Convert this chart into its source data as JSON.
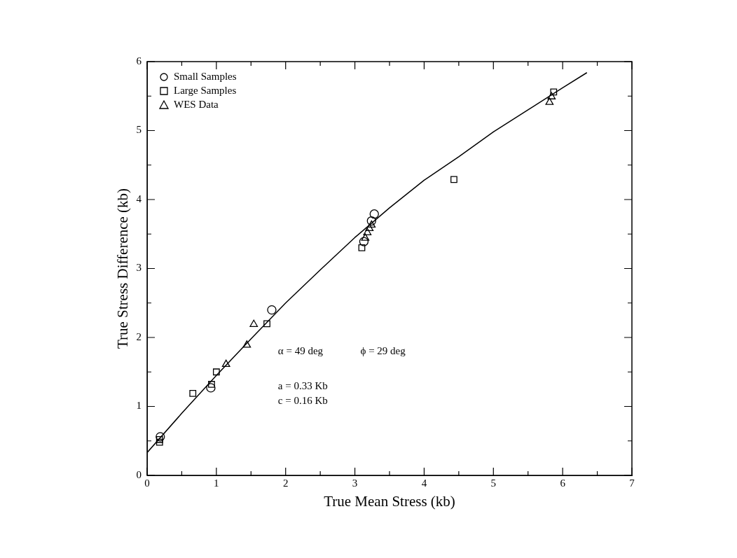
{
  "chart_data": {
    "type": "scatter",
    "xlabel": "True Mean Stress (kb)",
    "ylabel": "True Stress Difference (kb)",
    "xlim": [
      0,
      7
    ],
    "ylim": [
      0,
      6
    ],
    "xticks": [
      0,
      {
        "value": 0.5,
        "label": null
      },
      1,
      {
        "value": 1.5,
        "label": null
      },
      2,
      {
        "value": 2.5,
        "label": null
      },
      3,
      {
        "value": 3.5,
        "label": null
      },
      4,
      {
        "value": 4.5,
        "label": null
      },
      5,
      {
        "value": 5.5,
        "label": null
      },
      6,
      {
        "value": 6.5,
        "label": null
      },
      7
    ],
    "yticks": [
      0,
      {
        "value": 0.5,
        "label": null
      },
      1,
      {
        "value": 1.5,
        "label": null
      },
      2,
      {
        "value": 2.5,
        "label": null
      },
      3,
      {
        "value": 3.5,
        "label": null
      },
      4,
      {
        "value": 4.5,
        "label": null
      },
      5,
      {
        "value": 5.5,
        "label": null
      },
      6
    ],
    "grid": false,
    "legend": "top left",
    "annotations": [
      "α = 49 deg",
      "ϕ = 29 deg",
      "a = 0.33 Kb",
      "c = 0.16 Kb"
    ],
    "series": [
      {
        "name": "Small Samples",
        "color": "#000000",
        "marker": "circle",
        "x": [
          0.19,
          0.92,
          1.8,
          3.13,
          3.24,
          3.28
        ],
        "values": [
          0.56,
          1.27,
          2.4,
          3.39,
          3.69,
          3.79
        ]
      },
      {
        "name": "Large Samples",
        "color": "#000000",
        "marker": "square",
        "x": [
          0.18,
          0.18,
          0.66,
          0.93,
          1.0,
          1.73,
          3.1,
          4.43,
          5.87
        ],
        "values": [
          0.52,
          0.48,
          1.19,
          1.32,
          1.5,
          2.2,
          3.3,
          4.29,
          5.56
        ]
      },
      {
        "name": "WES Data",
        "color": "#000000",
        "marker": "triangle",
        "x": [
          1.14,
          1.44,
          1.54,
          3.15,
          3.18,
          3.21,
          3.24,
          5.81,
          5.84
        ],
        "values": [
          1.61,
          1.89,
          2.19,
          3.44,
          3.52,
          3.58,
          3.63,
          5.41,
          5.49
        ]
      },
      {
        "type": "line",
        "color": "#000000",
        "marker": "none",
        "x": [
          0,
          0.5,
          1,
          1.5,
          2,
          2.5,
          3,
          3.5,
          4,
          4.5,
          5,
          5.5,
          6,
          6.35
        ],
        "values": [
          0.33,
          0.9,
          1.45,
          1.98,
          2.5,
          2.98,
          3.45,
          3.88,
          4.28,
          4.62,
          4.98,
          5.3,
          5.62,
          5.84
        ]
      }
    ]
  }
}
